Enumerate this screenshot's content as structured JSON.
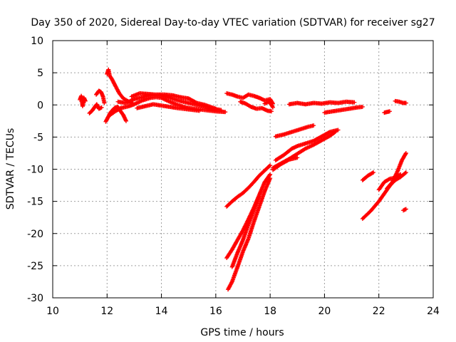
{
  "chart_data": {
    "type": "scatter",
    "title": "Day 350 of 2020, Sidereal Day-to-day VTEC variation (SDTVAR) for receiver sg27",
    "xlabel": "GPS time / hours",
    "ylabel": "SDTVAR / TECUs",
    "xlim": [
      10,
      24
    ],
    "ylim": [
      -30,
      10
    ],
    "xticks": [
      10,
      12,
      14,
      16,
      18,
      20,
      22,
      24
    ],
    "yticks": [
      -30,
      -25,
      -20,
      -15,
      -10,
      -5,
      0,
      5,
      10
    ],
    "grid": true,
    "marker": "plus",
    "color": "#ff0000",
    "series": [
      {
        "segments": [
          [
            [
              11.0,
              0.8
            ],
            [
              11.05,
              1.4
            ],
            [
              11.1,
              -0.2
            ],
            [
              11.15,
              1.1
            ],
            [
              11.2,
              0.6
            ]
          ],
          [
            [
              11.35,
              -1.3
            ],
            [
              11.45,
              -0.9
            ],
            [
              11.55,
              -0.3
            ],
            [
              11.62,
              0.1
            ],
            [
              11.7,
              -0.6
            ],
            [
              11.8,
              -0.4
            ]
          ],
          [
            [
              11.6,
              1.6
            ],
            [
              11.7,
              2.2
            ],
            [
              11.78,
              2.0
            ],
            [
              11.85,
              1.3
            ],
            [
              11.9,
              0.3
            ]
          ],
          [
            [
              11.95,
              -2.6
            ],
            [
              12.0,
              -2.2
            ],
            [
              12.05,
              -1.8
            ],
            [
              12.12,
              -1.2
            ],
            [
              12.2,
              -0.8
            ],
            [
              12.3,
              -0.4
            ],
            [
              12.4,
              -0.3
            ],
            [
              12.5,
              -1.0
            ],
            [
              12.6,
              -1.6
            ],
            [
              12.7,
              -2.5
            ]
          ],
          [
            [
              12.0,
              4.8
            ],
            [
              12.05,
              5.5
            ],
            [
              12.1,
              4.5
            ],
            [
              12.18,
              4.0
            ],
            [
              12.3,
              3.0
            ],
            [
              12.45,
              1.8
            ],
            [
              12.6,
              1.0
            ],
            [
              12.8,
              0.5
            ],
            [
              12.95,
              0.3
            ]
          ],
          [
            [
              12.1,
              -1.6
            ],
            [
              12.3,
              -1.0
            ],
            [
              12.5,
              -0.5
            ],
            [
              12.8,
              -0.2
            ],
            [
              13.0,
              0.1
            ],
            [
              13.3,
              0.7
            ],
            [
              13.6,
              1.1
            ],
            [
              13.8,
              1.2
            ],
            [
              14.0,
              1.1
            ],
            [
              14.3,
              0.5
            ],
            [
              14.6,
              0.0
            ],
            [
              14.9,
              -0.4
            ],
            [
              15.2,
              -0.6
            ],
            [
              15.6,
              -0.8
            ],
            [
              16.0,
              -1.0
            ],
            [
              16.35,
              -1.1
            ]
          ],
          [
            [
              12.4,
              0.5
            ],
            [
              12.7,
              0.3
            ],
            [
              13.0,
              0.9
            ],
            [
              13.3,
              1.2
            ],
            [
              13.6,
              1.5
            ],
            [
              14.0,
              1.4
            ],
            [
              14.3,
              1.1
            ],
            [
              14.7,
              0.6
            ],
            [
              15.0,
              0.3
            ],
            [
              15.5,
              -0.2
            ],
            [
              15.9,
              -0.6
            ],
            [
              16.2,
              -0.8
            ]
          ],
          [
            [
              12.9,
              1.3
            ],
            [
              13.2,
              1.8
            ],
            [
              13.5,
              1.7
            ],
            [
              13.8,
              1.6
            ],
            [
              14.1,
              1.6
            ],
            [
              14.4,
              1.5
            ],
            [
              14.7,
              1.2
            ],
            [
              15.0,
              1.0
            ],
            [
              15.3,
              0.3
            ],
            [
              15.6,
              0.0
            ],
            [
              16.0,
              -0.6
            ]
          ],
          [
            [
              13.1,
              -0.5
            ],
            [
              13.4,
              -0.2
            ],
            [
              13.7,
              0.1
            ],
            [
              14.0,
              -0.1
            ],
            [
              14.3,
              -0.3
            ],
            [
              14.6,
              -0.5
            ],
            [
              15.0,
              -0.7
            ],
            [
              15.4,
              -0.9
            ]
          ],
          [
            [
              16.4,
              1.8
            ],
            [
              16.6,
              1.6
            ],
            [
              16.8,
              1.3
            ],
            [
              17.0,
              1.1
            ],
            [
              17.2,
              1.6
            ],
            [
              17.4,
              1.4
            ],
            [
              17.6,
              1.1
            ],
            [
              17.8,
              0.7
            ],
            [
              18.0,
              0.9
            ],
            [
              18.1,
              0.2
            ]
          ],
          [
            [
              16.9,
              0.5
            ],
            [
              17.1,
              0.2
            ],
            [
              17.3,
              -0.3
            ],
            [
              17.5,
              -0.6
            ],
            [
              17.7,
              -0.5
            ],
            [
              17.9,
              -0.9
            ],
            [
              18.05,
              -1.0
            ]
          ],
          [
            [
              17.8,
              0.2
            ],
            [
              17.95,
              0.5
            ],
            [
              18.05,
              0.0
            ],
            [
              18.1,
              -0.4
            ]
          ],
          [
            [
              18.7,
              0.1
            ],
            [
              19.0,
              0.3
            ],
            [
              19.3,
              0.1
            ],
            [
              19.6,
              0.3
            ],
            [
              19.9,
              0.2
            ],
            [
              20.2,
              0.4
            ],
            [
              20.5,
              0.3
            ],
            [
              20.8,
              0.5
            ],
            [
              21.1,
              0.4
            ]
          ],
          [
            [
              20.0,
              -1.2
            ],
            [
              20.3,
              -1.0
            ],
            [
              20.6,
              -0.8
            ],
            [
              20.9,
              -0.6
            ],
            [
              21.2,
              -0.4
            ],
            [
              21.4,
              -0.3
            ]
          ],
          [
            [
              22.2,
              -1.2
            ],
            [
              22.3,
              -1.1
            ],
            [
              22.4,
              -1.0
            ]
          ],
          [
            [
              22.6,
              0.6
            ],
            [
              22.75,
              0.5
            ],
            [
              22.9,
              0.3
            ],
            [
              23.0,
              0.3
            ]
          ],
          [
            [
              16.4,
              -15.8
            ],
            [
              16.6,
              -15.0
            ],
            [
              16.8,
              -14.3
            ],
            [
              17.0,
              -13.7
            ],
            [
              17.2,
              -12.9
            ],
            [
              17.4,
              -12.0
            ],
            [
              17.6,
              -11.0
            ],
            [
              17.8,
              -10.2
            ],
            [
              18.0,
              -9.4
            ]
          ],
          [
            [
              16.4,
              -23.8
            ],
            [
              16.6,
              -22.5
            ],
            [
              16.8,
              -21.0
            ],
            [
              17.0,
              -19.5
            ],
            [
              17.2,
              -17.8
            ],
            [
              17.4,
              -16.0
            ],
            [
              17.6,
              -14.0
            ],
            [
              17.8,
              -12.0
            ],
            [
              18.0,
              -10.8
            ]
          ],
          [
            [
              16.45,
              -28.7
            ],
            [
              16.6,
              -27.5
            ],
            [
              16.8,
              -25.2
            ],
            [
              17.0,
              -22.8
            ],
            [
              17.2,
              -20.8
            ],
            [
              17.4,
              -18.2
            ],
            [
              17.6,
              -15.8
            ],
            [
              17.8,
              -13.4
            ],
            [
              18.0,
              -11.4
            ]
          ],
          [
            [
              16.6,
              -25.2
            ],
            [
              16.8,
              -23.0
            ],
            [
              17.0,
              -21.0
            ],
            [
              17.2,
              -18.6
            ],
            [
              17.4,
              -16.4
            ],
            [
              17.6,
              -14.2
            ]
          ],
          [
            [
              18.2,
              -4.9
            ],
            [
              18.5,
              -4.6
            ],
            [
              18.8,
              -4.2
            ],
            [
              19.1,
              -3.8
            ],
            [
              19.4,
              -3.4
            ],
            [
              19.6,
              -3.2
            ]
          ],
          [
            [
              18.2,
              -8.6
            ],
            [
              18.5,
              -7.8
            ],
            [
              18.8,
              -6.8
            ],
            [
              19.0,
              -6.4
            ],
            [
              19.3,
              -6.0
            ],
            [
              19.6,
              -5.6
            ],
            [
              19.9,
              -4.9
            ],
            [
              20.2,
              -4.2
            ],
            [
              20.5,
              -3.9
            ]
          ],
          [
            [
              18.1,
              -9.8
            ],
            [
              18.4,
              -9.1
            ],
            [
              18.7,
              -8.4
            ],
            [
              19.0,
              -7.6
            ],
            [
              19.3,
              -6.8
            ],
            [
              19.6,
              -6.2
            ],
            [
              19.9,
              -5.5
            ],
            [
              20.2,
              -4.8
            ],
            [
              20.4,
              -4.2
            ]
          ],
          [
            [
              18.1,
              -10.1
            ],
            [
              18.4,
              -9.2
            ],
            [
              18.7,
              -8.5
            ],
            [
              19.0,
              -8.2
            ]
          ],
          [
            [
              21.4,
              -11.7
            ],
            [
              21.6,
              -11.0
            ],
            [
              21.8,
              -10.5
            ]
          ],
          [
            [
              21.4,
              -17.7
            ],
            [
              21.7,
              -16.5
            ],
            [
              22.0,
              -15.0
            ],
            [
              22.2,
              -13.8
            ],
            [
              22.4,
              -12.6
            ],
            [
              22.6,
              -11.7
            ],
            [
              22.8,
              -11.2
            ],
            [
              23.0,
              -10.5
            ]
          ],
          [
            [
              22.0,
              -13.2
            ],
            [
              22.2,
              -12.0
            ],
            [
              22.4,
              -11.5
            ],
            [
              22.6,
              -11.3
            ],
            [
              22.8,
              -10.8
            ]
          ],
          [
            [
              22.3,
              -13.0
            ],
            [
              22.5,
              -12.0
            ],
            [
              22.7,
              -10.2
            ],
            [
              22.85,
              -8.6
            ],
            [
              23.0,
              -7.5
            ]
          ],
          [
            [
              22.9,
              -16.4
            ],
            [
              23.0,
              -16.2
            ]
          ]
        ]
      }
    ]
  }
}
